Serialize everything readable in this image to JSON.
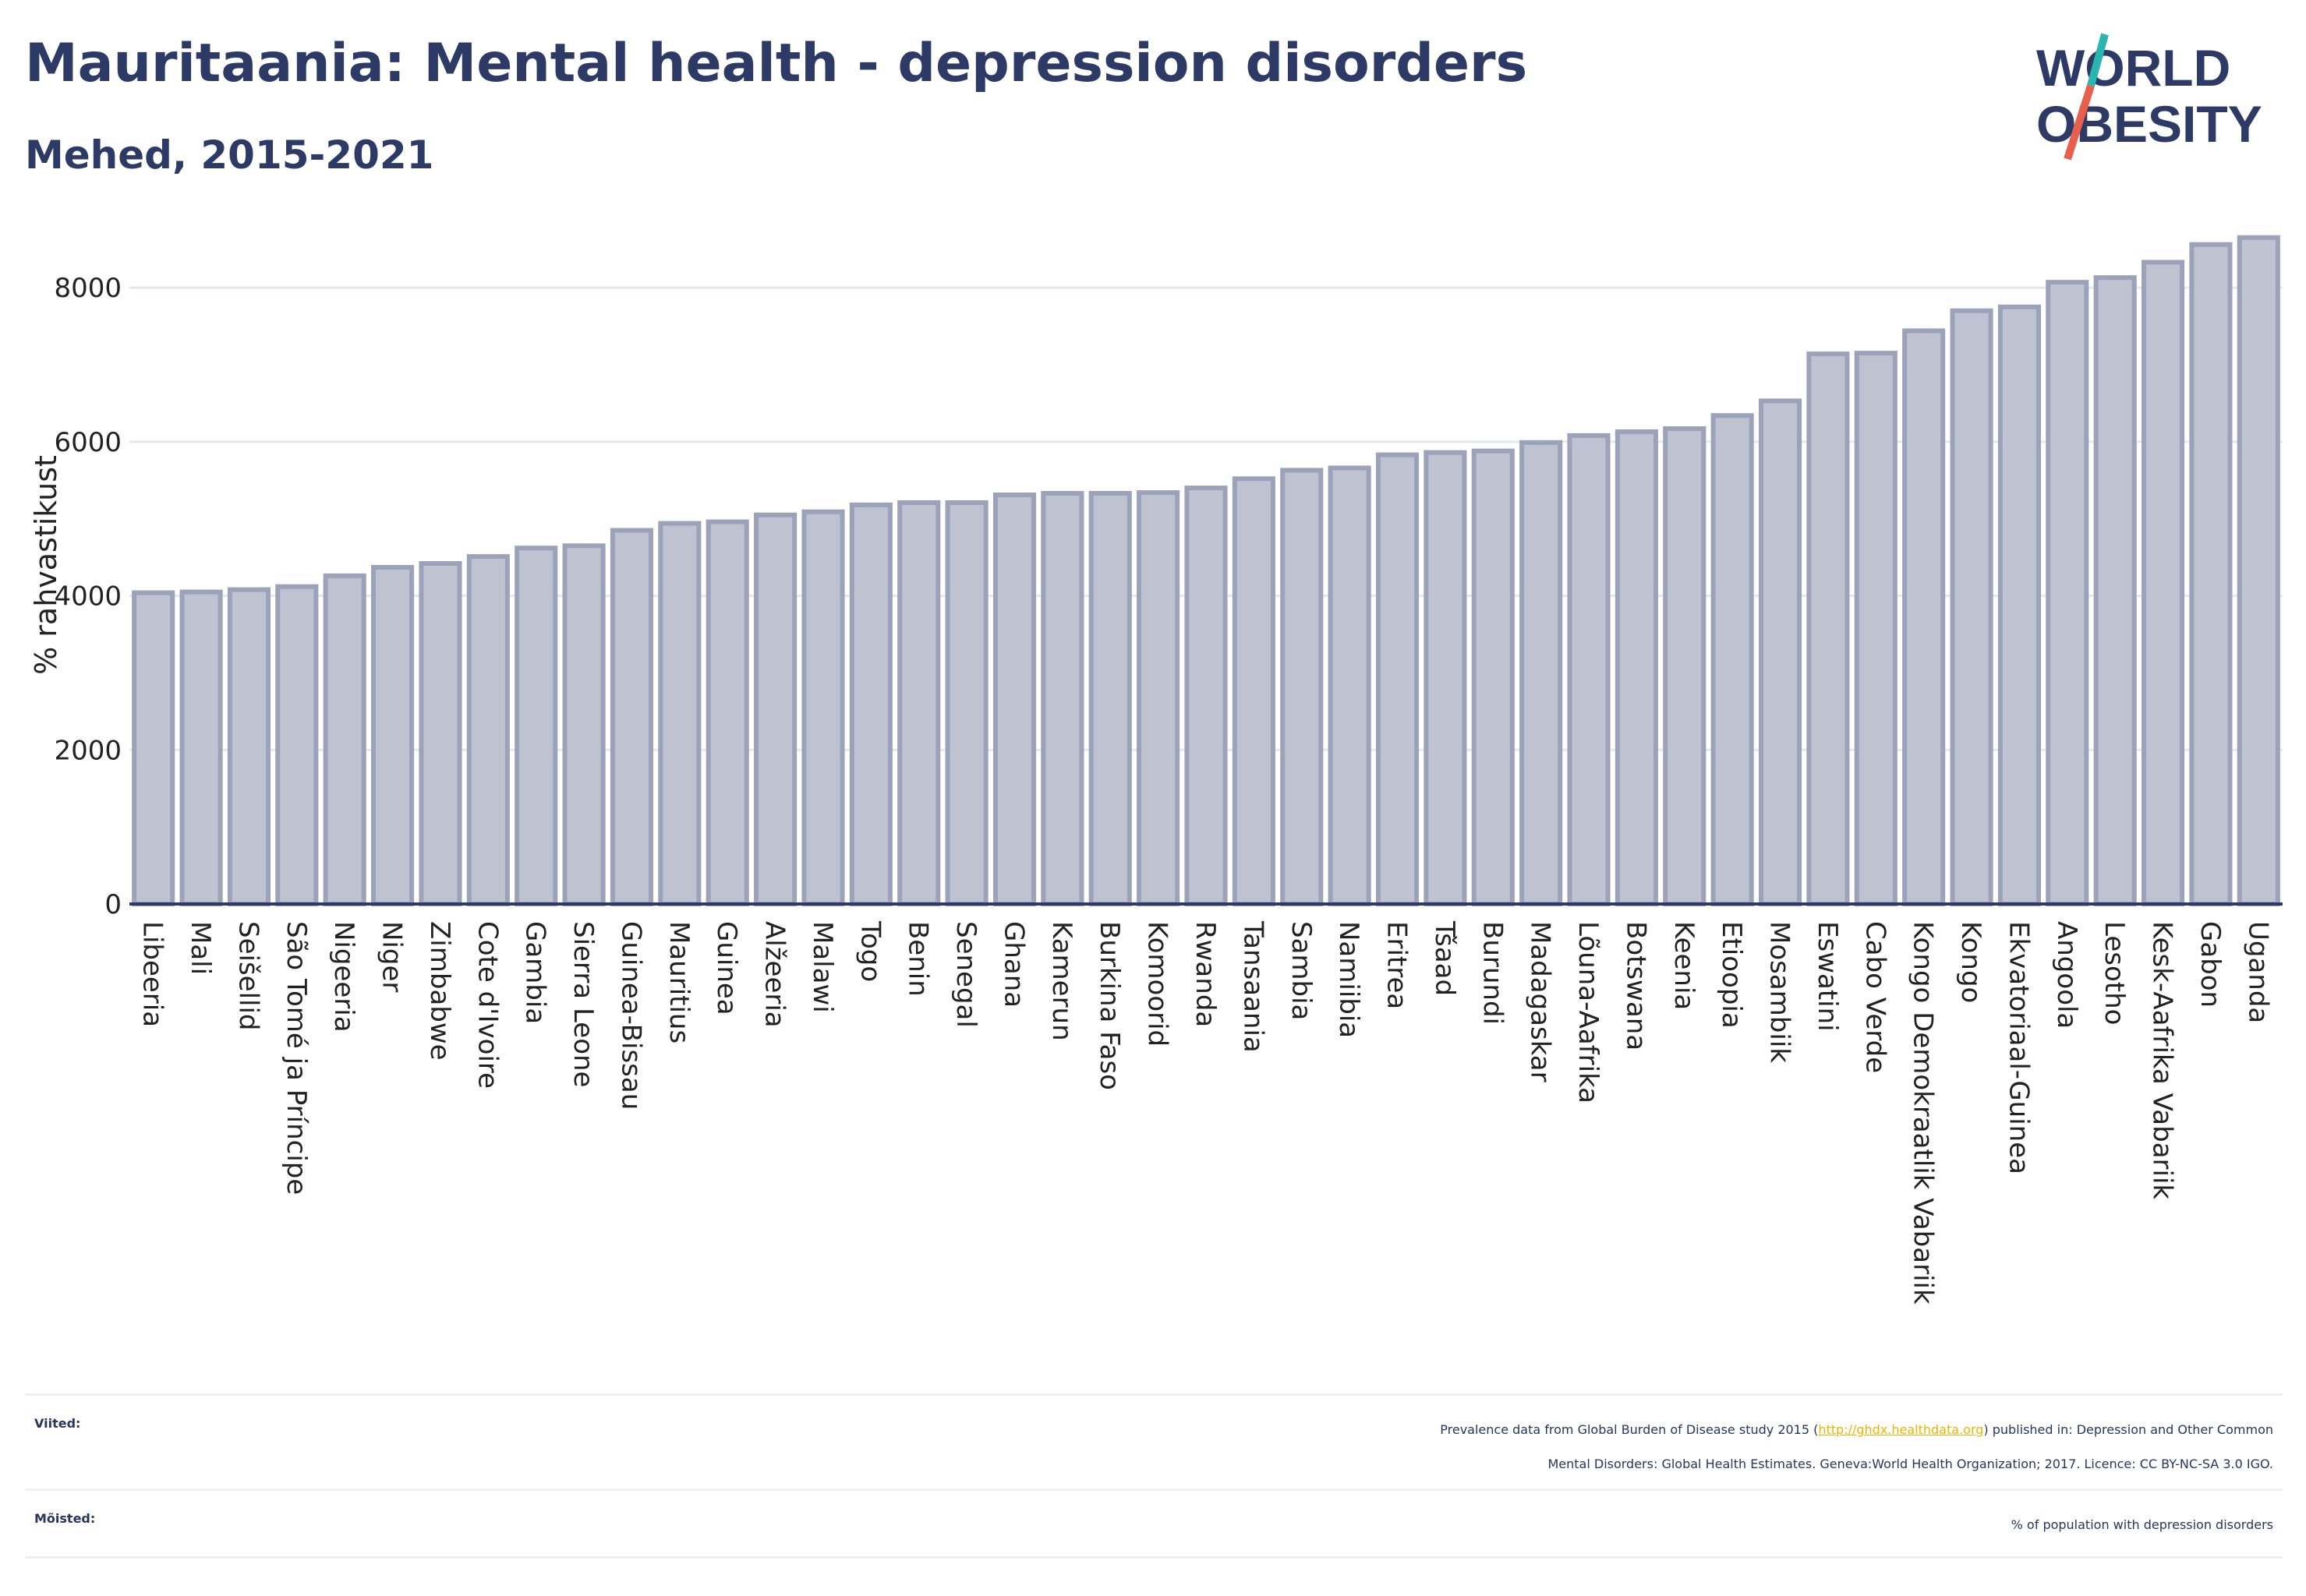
{
  "header": {
    "title": "Mauritaania: Mental health - depression disorders",
    "subtitle": "Mehed, 2015-2021"
  },
  "logo": {
    "line1": "WORLD",
    "line2": "OBESITY",
    "accent_teal": "#2ab5b0",
    "accent_red": "#e8604c"
  },
  "chart_data": {
    "type": "bar",
    "ylabel": "% rahvastikust",
    "xlabel": "",
    "ylim": [
      0,
      8800
    ],
    "yticks": [
      0,
      2000,
      4000,
      6000,
      8000
    ],
    "grid": true,
    "bar_color": "#bfc3d1",
    "bar_edge_color": "#9ba2b9",
    "categories": [
      "Libeeria",
      "Mali",
      "Seišellid",
      "São Tomé ja Príncipe",
      "Nigeeria",
      "Niger",
      "Zimbabwe",
      "Cote d'Ivoire",
      "Gambia",
      "Sierra Leone",
      "Guinea-Bissau",
      "Mauritius",
      "Guinea",
      "Alžeeria",
      "Malawi",
      "Togo",
      "Benin",
      "Senegal",
      "Ghana",
      "Kamerun",
      "Burkina Faso",
      "Komoorid",
      "Rwanda",
      "Tansaania",
      "Sambia",
      "Namiibia",
      "Eritrea",
      "Tšaad",
      "Burundi",
      "Madagaskar",
      "Lõuna-Aafrika",
      "Botswana",
      "Keenia",
      "Etioopia",
      "Mosambiik",
      "Eswatini",
      "Cabo Verde",
      "Kongo Demokraatlik Vabariik",
      "Kongo",
      "Ekvatoriaal-Guinea",
      "Angoola",
      "Lesotho",
      "Kesk-Aafrika Vabariik",
      "Gabon",
      "Uganda"
    ],
    "values": [
      4040,
      4050,
      4080,
      4120,
      4260,
      4370,
      4420,
      4510,
      4620,
      4650,
      4850,
      4940,
      4960,
      5050,
      5090,
      5180,
      5210,
      5210,
      5310,
      5330,
      5330,
      5340,
      5400,
      5520,
      5630,
      5660,
      5830,
      5860,
      5880,
      5990,
      6080,
      6130,
      6170,
      6340,
      6530,
      7140,
      7150,
      7440,
      7700,
      7750,
      8070,
      8130,
      8330,
      8560,
      8650
    ]
  },
  "footer": {
    "references_label": "Viited:",
    "references_text_1": "Prevalence data from Global Burden of Disease study 2015 (",
    "references_link": "http://ghdx.healthdata.org",
    "references_text_2": ") published in: Depression and Other Common",
    "references_text_3": "Mental Disorders: Global Health Estimates. Geneva:World Health Organization; 2017. Licence: CC BY-NC-SA 3.0 IGO.",
    "definitions_label": "Mõisted:",
    "definitions_text": "% of population with depression disorders",
    "link_color": "#f0b400"
  }
}
